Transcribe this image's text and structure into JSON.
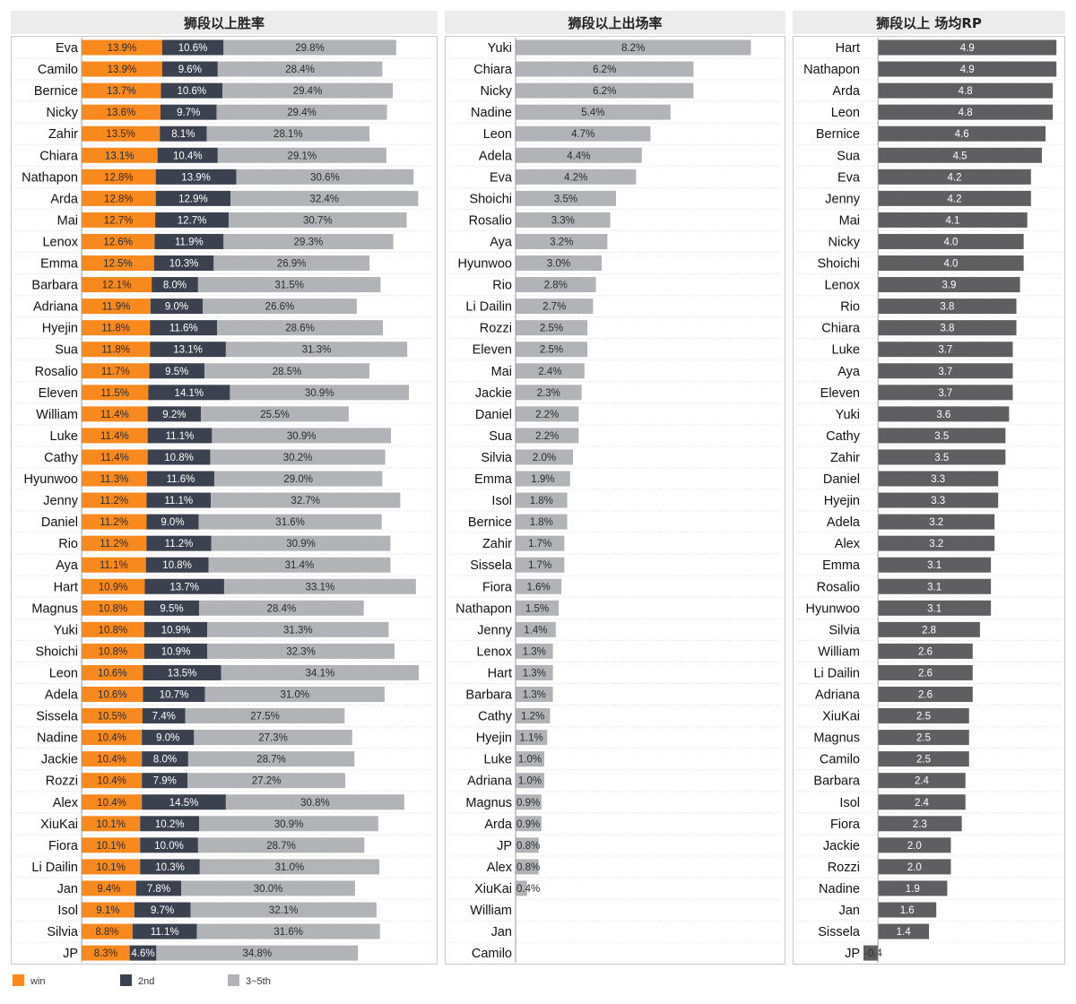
{
  "colors": {
    "win": "#f7891f",
    "second": "#3c4150",
    "top5": "#b1b3b6",
    "rp": "#5f5f61",
    "title_bg": "#ececec"
  },
  "legend": [
    {
      "label": "win",
      "color": "#f7891f"
    },
    {
      "label": "2nd",
      "color": "#3c4150"
    },
    {
      "label": "3~5th",
      "color": "#b1b3b6"
    }
  ],
  "chart_data": [
    {
      "type": "bar",
      "stacked": true,
      "orientation": "horizontal",
      "title": "狮段以上胜率",
      "categories": [
        "Eva",
        "Camilo",
        "Bernice",
        "Nicky",
        "Zahir",
        "Chiara",
        "Nathapon",
        "Arda",
        "Mai",
        "Lenox",
        "Emma",
        "Barbara",
        "Adriana",
        "Hyejin",
        "Sua",
        "Rosalio",
        "Eleven",
        "William",
        "Luke",
        "Cathy",
        "Hyunwoo",
        "Jenny",
        "Daniel",
        "Rio",
        "Aya",
        "Hart",
        "Magnus",
        "Yuki",
        "Shoichi",
        "Leon",
        "Adela",
        "Sissela",
        "Nadine",
        "Jackie",
        "Rozzi",
        "Alex",
        "XiuKai",
        "Fiora",
        "Li Dailin",
        "Jan",
        "Isol",
        "Silvia",
        "JP"
      ],
      "series": [
        {
          "name": "win",
          "values": [
            13.9,
            13.9,
            13.7,
            13.6,
            13.5,
            13.1,
            12.8,
            12.8,
            12.7,
            12.6,
            12.5,
            12.1,
            11.9,
            11.8,
            11.8,
            11.7,
            11.5,
            11.4,
            11.4,
            11.4,
            11.3,
            11.2,
            11.2,
            11.2,
            11.1,
            10.9,
            10.8,
            10.8,
            10.8,
            10.6,
            10.6,
            10.5,
            10.4,
            10.4,
            10.4,
            10.4,
            10.1,
            10.1,
            10.1,
            9.4,
            9.1,
            8.8,
            8.3
          ]
        },
        {
          "name": "2nd",
          "values": [
            10.6,
            9.6,
            10.6,
            9.7,
            8.1,
            10.4,
            13.9,
            12.9,
            12.7,
            11.9,
            10.3,
            8.0,
            9.0,
            11.6,
            13.1,
            9.5,
            14.1,
            9.2,
            11.1,
            10.8,
            11.6,
            11.1,
            9.0,
            11.2,
            10.8,
            13.7,
            9.5,
            10.9,
            10.9,
            13.5,
            10.7,
            7.4,
            9.0,
            8.0,
            7.9,
            14.5,
            10.2,
            10.0,
            10.3,
            7.8,
            9.7,
            11.1,
            4.6
          ]
        },
        {
          "name": "3~5th",
          "values": [
            29.8,
            28.4,
            29.4,
            29.4,
            28.1,
            29.1,
            30.6,
            32.4,
            30.7,
            29.3,
            26.9,
            31.5,
            26.6,
            28.6,
            31.3,
            28.5,
            30.9,
            25.5,
            30.9,
            30.2,
            29.0,
            32.7,
            31.6,
            30.9,
            31.4,
            33.1,
            28.4,
            31.3,
            32.3,
            34.1,
            31.0,
            27.5,
            27.3,
            28.7,
            27.2,
            30.8,
            30.9,
            28.7,
            31.0,
            30.0,
            32.1,
            31.6,
            34.8
          ]
        }
      ],
      "unit": "%"
    },
    {
      "type": "bar",
      "orientation": "horizontal",
      "title": "狮段以上出场率",
      "categories": [
        "Yuki",
        "Chiara",
        "Nicky",
        "Nadine",
        "Leon",
        "Adela",
        "Eva",
        "Shoichi",
        "Rosalio",
        "Aya",
        "Hyunwoo",
        "Rio",
        "Li Dailin",
        "Rozzi",
        "Eleven",
        "Mai",
        "Jackie",
        "Daniel",
        "Sua",
        "Silvia",
        "Emma",
        "Isol",
        "Bernice",
        "Zahir",
        "Sissela",
        "Fiora",
        "Nathapon",
        "Jenny",
        "Lenox",
        "Hart",
        "Barbara",
        "Cathy",
        "Hyejin",
        "Luke",
        "Adriana",
        "Magnus",
        "Arda",
        "JP",
        "Alex",
        "XiuKai",
        "William",
        "Jan",
        "Camilo"
      ],
      "values": [
        8.2,
        6.2,
        6.2,
        5.4,
        4.7,
        4.4,
        4.2,
        3.5,
        3.3,
        3.2,
        3.0,
        2.8,
        2.7,
        2.5,
        2.5,
        2.4,
        2.3,
        2.2,
        2.2,
        2.0,
        1.9,
        1.8,
        1.8,
        1.7,
        1.7,
        1.6,
        1.5,
        1.4,
        1.3,
        1.3,
        1.3,
        1.2,
        1.1,
        1.0,
        1.0,
        0.9,
        0.9,
        0.8,
        0.8,
        0.4,
        null,
        null,
        null
      ],
      "unit": "%"
    },
    {
      "type": "bar",
      "orientation": "horizontal",
      "title": "狮段以上 场均RP",
      "categories": [
        "Hart",
        "Nathapon",
        "Arda",
        "Leon",
        "Bernice",
        "Sua",
        "Eva",
        "Jenny",
        "Mai",
        "Nicky",
        "Shoichi",
        "Lenox",
        "Rio",
        "Chiara",
        "Luke",
        "Aya",
        "Eleven",
        "Yuki",
        "Cathy",
        "Zahir",
        "Daniel",
        "Hyejin",
        "Adela",
        "Alex",
        "Emma",
        "Rosalio",
        "Hyunwoo",
        "Silvia",
        "William",
        "Li Dailin",
        "Adriana",
        "XiuKai",
        "Magnus",
        "Camilo",
        "Barbara",
        "Isol",
        "Fiora",
        "Jackie",
        "Rozzi",
        "Nadine",
        "Jan",
        "Sissela",
        "JP"
      ],
      "values": [
        4.9,
        4.9,
        4.8,
        4.8,
        4.6,
        4.5,
        4.2,
        4.2,
        4.1,
        4.0,
        4.0,
        3.9,
        3.8,
        3.8,
        3.7,
        3.7,
        3.7,
        3.6,
        3.5,
        3.5,
        3.3,
        3.3,
        3.2,
        3.2,
        3.1,
        3.1,
        3.1,
        2.8,
        2.6,
        2.6,
        2.6,
        2.5,
        2.5,
        2.5,
        2.4,
        2.4,
        2.3,
        2.0,
        2.0,
        1.9,
        1.6,
        1.4,
        -0.4
      ]
    }
  ]
}
